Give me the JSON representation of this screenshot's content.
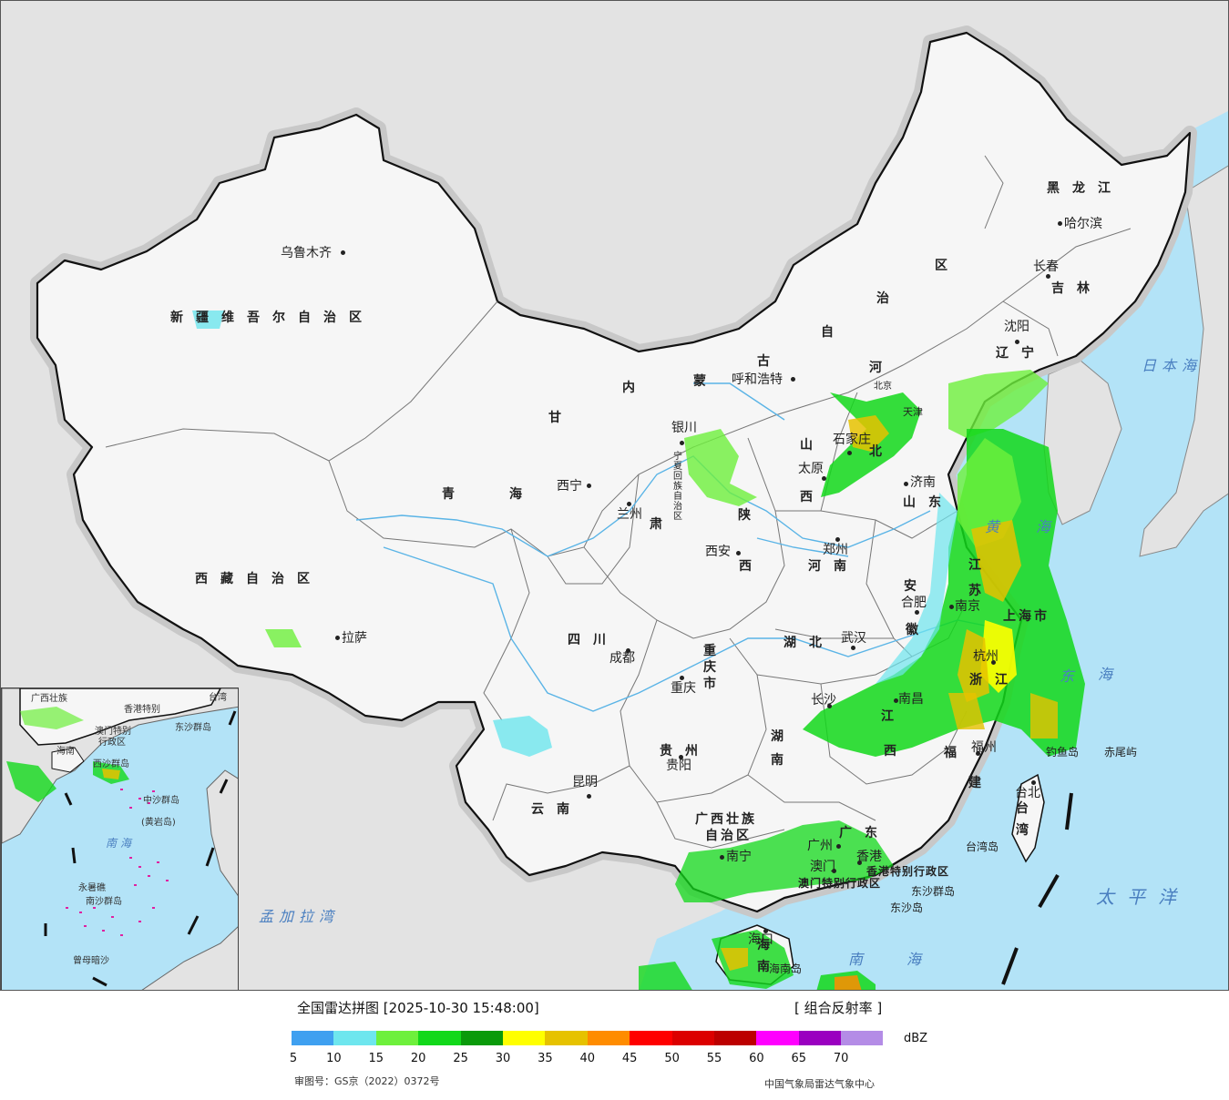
{
  "map": {
    "colors": {
      "land_outside": "#e5e5e5",
      "land_china": "#f7f7f7",
      "sea": "#b3e3f7",
      "border": "#111111",
      "halo": "#c9c9c9",
      "river": "#5ab4e6"
    },
    "province_labels": [
      {
        "key": "xinjiang",
        "text": "新疆维吾尔自治区"
      },
      {
        "key": "xizang",
        "text": "西藏自治区"
      },
      {
        "key": "qinghai_1",
        "text": "青"
      },
      {
        "key": "qinghai_2",
        "text": "海"
      },
      {
        "key": "gansu_1",
        "text": "甘"
      },
      {
        "key": "gansu_2",
        "text": "肃"
      },
      {
        "key": "neimenggu_1",
        "text": "内"
      },
      {
        "key": "neimenggu_2",
        "text": "蒙"
      },
      {
        "key": "neimenggu_3",
        "text": "古"
      },
      {
        "key": "neimenggu_4",
        "text": "自"
      },
      {
        "key": "neimenggu_5",
        "text": "治"
      },
      {
        "key": "neimenggu_6",
        "text": "区"
      },
      {
        "key": "heilongjiang",
        "text": "黑龙江"
      },
      {
        "key": "jilin",
        "text": "吉林"
      },
      {
        "key": "liaoning",
        "text": "辽宁"
      },
      {
        "key": "hebei_1",
        "text": "河"
      },
      {
        "key": "hebei_2",
        "text": "北"
      },
      {
        "key": "shanxi_1",
        "text": "山"
      },
      {
        "key": "shanxi_2",
        "text": "西"
      },
      {
        "key": "shandong",
        "text": "山东"
      },
      {
        "key": "henan",
        "text": "河南"
      },
      {
        "key": "shaanxi_1",
        "text": "陕"
      },
      {
        "key": "shaanxi_2",
        "text": "西"
      },
      {
        "key": "ningxia",
        "text": "宁夏回族自治区"
      },
      {
        "key": "sichuan",
        "text": "四川"
      },
      {
        "key": "chongqing",
        "text": "重庆市"
      },
      {
        "key": "hubei",
        "text": "湖北"
      },
      {
        "key": "hunan",
        "text": "湖南"
      },
      {
        "key": "anhui_1",
        "text": "安"
      },
      {
        "key": "anhui_2",
        "text": "徽"
      },
      {
        "key": "jiangsu_1",
        "text": "江"
      },
      {
        "key": "jiangsu_2",
        "text": "苏"
      },
      {
        "key": "zhejiang",
        "text": "浙江"
      },
      {
        "key": "jiangxi_1",
        "text": "江"
      },
      {
        "key": "jiangxi_2",
        "text": "西"
      },
      {
        "key": "fujian_1",
        "text": "福"
      },
      {
        "key": "fujian_2",
        "text": "建"
      },
      {
        "key": "guizhou",
        "text": "贵州"
      },
      {
        "key": "yunnan",
        "text": "云南"
      },
      {
        "key": "guangxi_1",
        "text": "广西壮族"
      },
      {
        "key": "guangxi_2",
        "text": "自治区"
      },
      {
        "key": "guangdong",
        "text": "广东"
      },
      {
        "key": "taiwan_1",
        "text": "台"
      },
      {
        "key": "taiwan_2",
        "text": "湾"
      },
      {
        "key": "hainan",
        "text": "海南"
      },
      {
        "key": "shanghai",
        "text": "上海市"
      },
      {
        "key": "beijing_tianjin",
        "text": "北京"
      },
      {
        "key": "hk",
        "text": "香港特别行政区"
      },
      {
        "key": "macau",
        "text": "澳门特别行政区"
      }
    ],
    "cities": [
      {
        "key": "urumqi",
        "text": "乌鲁木齐"
      },
      {
        "key": "lhasa",
        "text": "拉萨"
      },
      {
        "key": "xining",
        "text": "西宁"
      },
      {
        "key": "lanzhou",
        "text": "兰州"
      },
      {
        "key": "yinchuan",
        "text": "银川"
      },
      {
        "key": "hohhot",
        "text": "呼和浩特"
      },
      {
        "key": "harbin",
        "text": "哈尔滨"
      },
      {
        "key": "changchun",
        "text": "长春"
      },
      {
        "key": "shenyang",
        "text": "沈阳"
      },
      {
        "key": "shijiazhuang",
        "text": "石家庄"
      },
      {
        "key": "taiyuan",
        "text": "太原"
      },
      {
        "key": "jinan",
        "text": "济南"
      },
      {
        "key": "zhengzhou",
        "text": "郑州"
      },
      {
        "key": "xian",
        "text": "西安"
      },
      {
        "key": "chengdu",
        "text": "成都"
      },
      {
        "key": "chongqing_c",
        "text": "重庆"
      },
      {
        "key": "wuhan",
        "text": "武汉"
      },
      {
        "key": "hefei",
        "text": "合肥"
      },
      {
        "key": "nanjing",
        "text": "南京"
      },
      {
        "key": "hangzhou",
        "text": "杭州"
      },
      {
        "key": "nanchang",
        "text": "南昌"
      },
      {
        "key": "changsha",
        "text": "长沙"
      },
      {
        "key": "fuzhou",
        "text": "福州"
      },
      {
        "key": "guiyang",
        "text": "贵阳"
      },
      {
        "key": "kunming",
        "text": "昆明"
      },
      {
        "key": "nanning",
        "text": "南宁"
      },
      {
        "key": "guangzhou",
        "text": "广州"
      },
      {
        "key": "macau_c",
        "text": "澳门"
      },
      {
        "key": "hongkong",
        "text": "香港"
      },
      {
        "key": "haikou",
        "text": "海口"
      },
      {
        "key": "taipei",
        "text": "台北"
      },
      {
        "key": "tianjin",
        "text": "天津"
      }
    ],
    "sea_labels": [
      {
        "key": "japan_sea",
        "text": "日本海"
      },
      {
        "key": "yellow_sea",
        "text": "黄海"
      },
      {
        "key": "east_sea_1",
        "text": "东"
      },
      {
        "key": "east_sea_2",
        "text": "海"
      },
      {
        "key": "pacific",
        "text": "太平洋"
      },
      {
        "key": "bengal",
        "text": "孟加拉湾"
      },
      {
        "key": "south_sea",
        "text": "南海"
      }
    ],
    "island_labels": [
      {
        "key": "diaoyu",
        "text": "钓鱼岛"
      },
      {
        "key": "chiwei",
        "text": "赤尾屿"
      },
      {
        "key": "taiwan_island",
        "text": "台湾岛"
      },
      {
        "key": "dongsha_group",
        "text": "东沙群岛"
      },
      {
        "key": "dongsha",
        "text": "东沙岛"
      },
      {
        "key": "hainan_island",
        "text": "海南岛"
      }
    ],
    "inset": {
      "labels": [
        "广西壮族",
        "香港特别",
        "澳门特别",
        "行政区",
        "台湾",
        "东沙群岛",
        "海南",
        "西沙群岛",
        "中沙群岛",
        "(黄岩岛)",
        "南海",
        "永暑礁",
        "南沙群岛",
        "曾母暗沙"
      ]
    }
  },
  "legend": {
    "title": "全国雷达拼图 [2025-10-30 15:48:00]",
    "product": "[ 组合反射率 ]",
    "unit": "dBZ",
    "colors": [
      "#3fa0f0",
      "#6ee6ee",
      "#6ef03c",
      "#12d81a",
      "#0a9a0a",
      "#ffff00",
      "#e6c200",
      "#ff8c00",
      "#ff0000",
      "#dc0000",
      "#bc0000",
      "#ff00ff",
      "#9a00c0",
      "#b48ce6"
    ],
    "ticks": [
      "5",
      "10",
      "15",
      "20",
      "25",
      "30",
      "35",
      "40",
      "45",
      "50",
      "55",
      "60",
      "65",
      "70"
    ],
    "approval": "审图号：GS京（2022）0372号",
    "source": "中国气象局雷达气象中心"
  }
}
